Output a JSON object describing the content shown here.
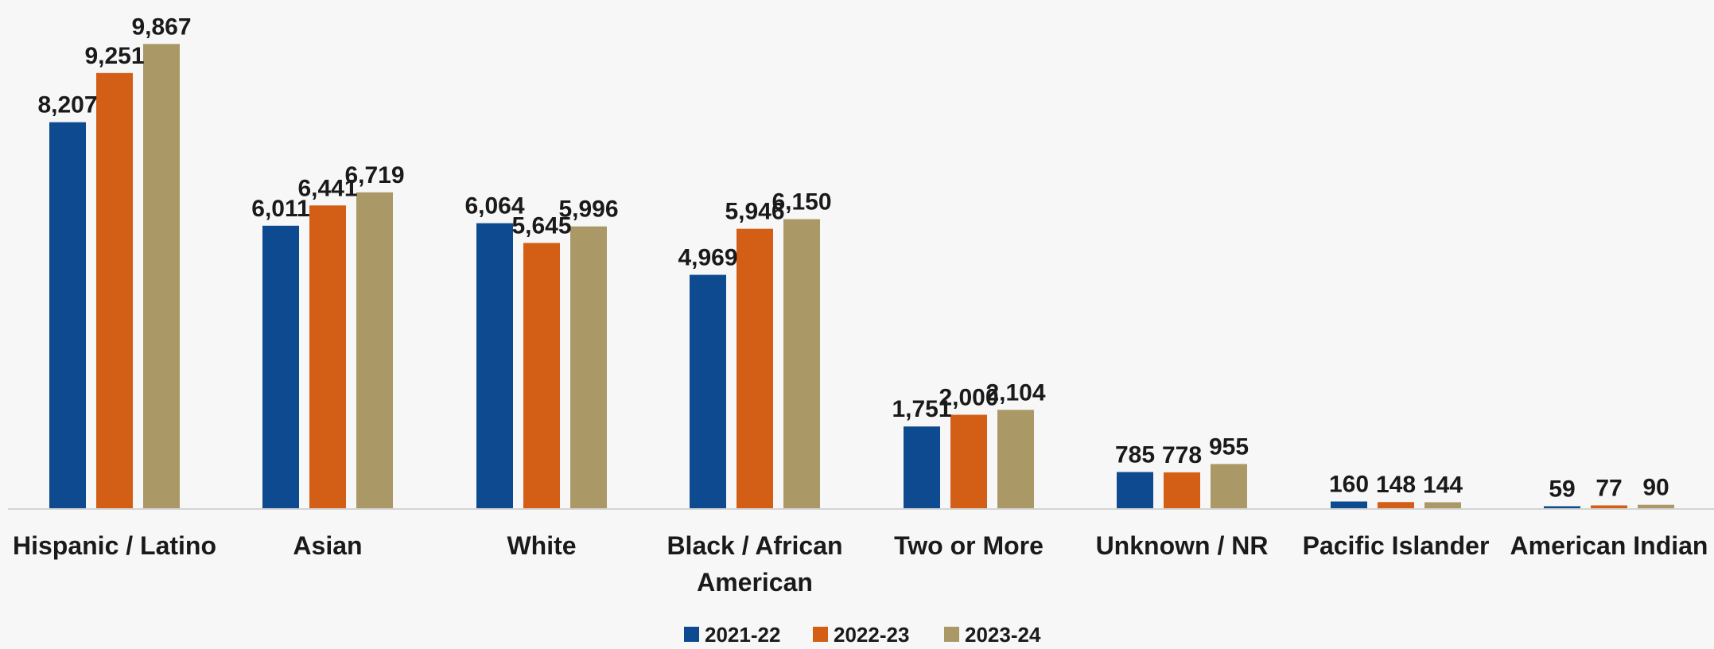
{
  "chart_data": {
    "type": "bar",
    "categories": [
      [
        "Hispanic / Latino"
      ],
      [
        "Asian"
      ],
      [
        "White"
      ],
      [
        "Black / African",
        "American"
      ],
      [
        "Two or More"
      ],
      [
        "Unknown / NR"
      ],
      [
        "Pacific Islander"
      ],
      [
        "American Indian"
      ]
    ],
    "series": [
      {
        "name": "2021-22",
        "color": "#0d4a8f",
        "values": [
          8207,
          6011,
          6064,
          4969,
          1751,
          785,
          160,
          59
        ],
        "labels": [
          "8,207",
          "6,011",
          "6,064",
          "4,969",
          "1,751",
          "785",
          "160",
          "59"
        ]
      },
      {
        "name": "2022-23",
        "color": "#d35f17",
        "values": [
          9251,
          6441,
          5645,
          5946,
          2000,
          778,
          148,
          77
        ],
        "labels": [
          "9,251",
          "6,441",
          "5,645",
          "5,946",
          "2,000",
          "778",
          "148",
          "77"
        ]
      },
      {
        "name": "2023-24",
        "color": "#aa9966",
        "values": [
          9867,
          6719,
          5996,
          6150,
          2104,
          955,
          144,
          90
        ],
        "labels": [
          "9,867",
          "6,719",
          "5,996",
          "6,150",
          "2,104",
          "955",
          "144",
          "90"
        ]
      }
    ],
    "ylim": [
      0,
      10800
    ],
    "grid": false,
    "legend_position": "bottom"
  }
}
